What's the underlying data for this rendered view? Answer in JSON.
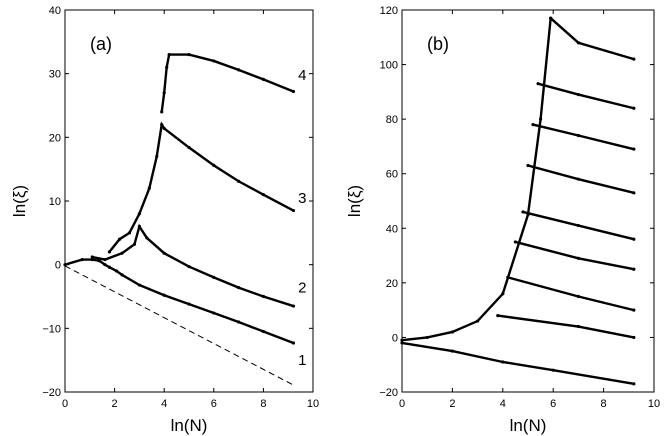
{
  "chart_data": [
    {
      "type": "scatter",
      "panel_label": "(a)",
      "xlabel": "ln(N)",
      "ylabel": "ln(ξ)",
      "xlim": [
        0,
        10
      ],
      "ylim": [
        -20,
        40
      ],
      "xticks": [
        "0",
        "2",
        "4",
        "6",
        "8",
        "10"
      ],
      "yticks": [
        "−20",
        "−10",
        "0",
        "10",
        "20",
        "30",
        "40"
      ],
      "curve_labels": [
        {
          "text": "1",
          "x": 9.6,
          "y": -15.0
        },
        {
          "text": "2",
          "x": 9.6,
          "y": -3.6
        },
        {
          "text": "3",
          "x": 9.6,
          "y": 10.5
        },
        {
          "text": "4",
          "x": 9.6,
          "y": 29.8
        }
      ],
      "series": [
        {
          "values": [
            [
              0.0,
              0.0
            ],
            [
              0.69,
              0.8
            ],
            [
              1.1,
              0.8
            ],
            [
              1.39,
              0.6
            ],
            [
              1.61,
              0.0
            ],
            [
              1.79,
              -0.4
            ],
            [
              2.08,
              -1.0
            ],
            [
              2.3,
              -1.6
            ],
            [
              3.0,
              -3.2
            ],
            [
              4.0,
              -4.8
            ],
            [
              5.0,
              -6.2
            ],
            [
              6.0,
              -7.6
            ],
            [
              7.0,
              -9.0
            ],
            [
              8.0,
              -10.5
            ],
            [
              9.21,
              -12.3
            ]
          ]
        },
        {
          "values": [
            [
              1.1,
              1.2
            ],
            [
              1.61,
              0.8
            ],
            [
              2.3,
              1.8
            ],
            [
              2.8,
              3.2
            ],
            [
              3.0,
              6.0
            ],
            [
              3.3,
              4.2
            ],
            [
              4.0,
              1.8
            ],
            [
              5.0,
              -0.3
            ],
            [
              6.0,
              -2.0
            ],
            [
              7.0,
              -3.6
            ],
            [
              8.0,
              -5.0
            ],
            [
              9.21,
              -6.5
            ]
          ]
        },
        {
          "values": [
            [
              1.79,
              2.0
            ],
            [
              2.2,
              4.0
            ],
            [
              2.6,
              5.0
            ],
            [
              3.0,
              8.0
            ],
            [
              3.4,
              12.0
            ],
            [
              3.7,
              17.0
            ],
            [
              3.9,
              22.0
            ],
            [
              4.0,
              21.4
            ],
            [
              5.0,
              18.4
            ],
            [
              6.0,
              15.6
            ],
            [
              7.0,
              13.1
            ],
            [
              8.0,
              11.0
            ],
            [
              9.21,
              8.5
            ]
          ]
        },
        {
          "values": [
            [
              3.9,
              24.0
            ],
            [
              4.0,
              27.0
            ],
            [
              4.1,
              31.0
            ],
            [
              4.2,
              33.0
            ],
            [
              5.0,
              33.0
            ],
            [
              6.0,
              32.0
            ],
            [
              7.0,
              30.6
            ],
            [
              8.0,
              29.1
            ],
            [
              9.21,
              27.2
            ]
          ]
        },
        {
          "values": [
            [
              0.0,
              -0.2
            ],
            [
              9.21,
              -18.9
            ]
          ]
        }
      ]
    },
    {
      "type": "scatter",
      "panel_label": "(b)",
      "xlabel": "ln(N)",
      "ylabel": "ln(ξ)",
      "xlim": [
        0,
        10
      ],
      "ylim": [
        -20,
        120
      ],
      "xticks": [
        "0",
        "2",
        "4",
        "6",
        "8",
        "10"
      ],
      "yticks": [
        "−20",
        "0",
        "20",
        "40",
        "60",
        "80",
        "100",
        "120"
      ],
      "series": [
        {
          "values": [
            [
              0.0,
              -1.0
            ],
            [
              1.0,
              0.0
            ],
            [
              2.0,
              2.0
            ],
            [
              3.0,
              6.0
            ],
            [
              4.0,
              16.0
            ],
            [
              5.0,
              45.0
            ],
            [
              5.5,
              80.0
            ],
            [
              5.9,
              117.0
            ]
          ]
        },
        {
          "values": [
            [
              0.0,
              -2.0
            ],
            [
              2.0,
              -5.0
            ],
            [
              4.0,
              -9.0
            ],
            [
              6.0,
              -12.0
            ],
            [
              9.2,
              -17.0
            ]
          ]
        },
        {
          "values": [
            [
              5.9,
              117.0
            ],
            [
              7.0,
              108.0
            ],
            [
              9.2,
              102.0
            ]
          ]
        },
        {
          "values": [
            [
              5.4,
              93.0
            ],
            [
              7.0,
              89.0
            ],
            [
              9.2,
              84.0
            ]
          ]
        },
        {
          "values": [
            [
              5.2,
              78.0
            ],
            [
              7.0,
              74.0
            ],
            [
              9.2,
              69.0
            ]
          ]
        },
        {
          "values": [
            [
              5.0,
              63.0
            ],
            [
              7.0,
              58.0
            ],
            [
              9.2,
              53.0
            ]
          ]
        },
        {
          "values": [
            [
              4.8,
              46.0
            ],
            [
              7.0,
              41.0
            ],
            [
              9.2,
              36.0
            ]
          ]
        },
        {
          "values": [
            [
              4.5,
              35.0
            ],
            [
              7.0,
              29.0
            ],
            [
              9.2,
              25.0
            ]
          ]
        },
        {
          "values": [
            [
              4.2,
              22.0
            ],
            [
              7.0,
              15.0
            ],
            [
              9.2,
              10.0
            ]
          ]
        },
        {
          "values": [
            [
              3.8,
              8.0
            ],
            [
              7.0,
              4.0
            ],
            [
              9.2,
              0.0
            ]
          ]
        }
      ]
    }
  ]
}
